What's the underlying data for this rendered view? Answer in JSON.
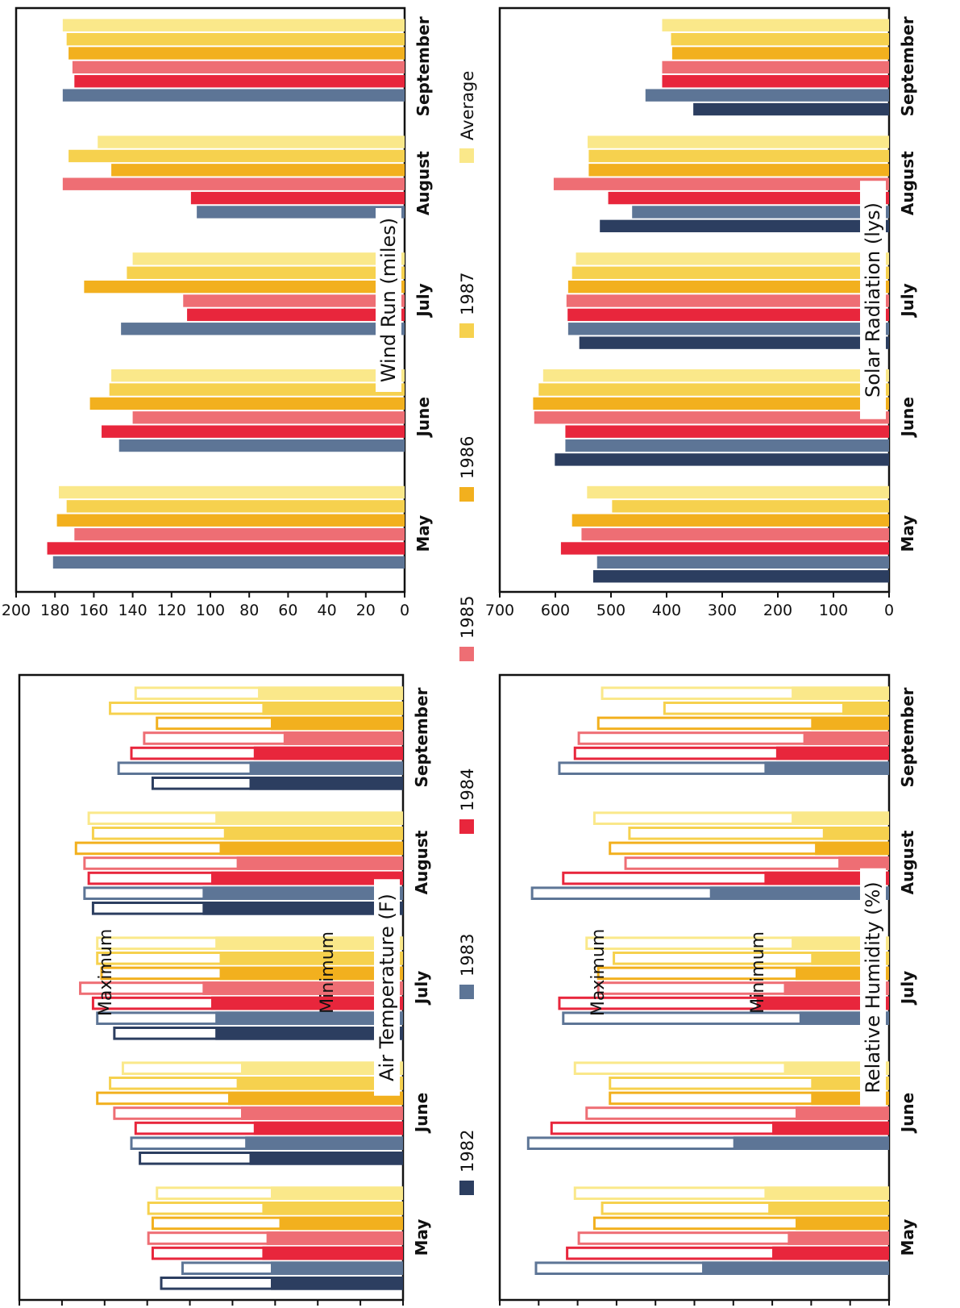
{
  "legend": {
    "items": [
      {
        "label": "1982",
        "color": "#2c3e60"
      },
      {
        "label": "1983",
        "color": "#5d7596"
      },
      {
        "label": "1984",
        "color": "#e8263c"
      },
      {
        "label": "1985",
        "color": "#ee6e74"
      },
      {
        "label": "1986",
        "color": "#f2b01e"
      },
      {
        "label": "1987",
        "color": "#f6d14e"
      },
      {
        "label": "Average",
        "color": "#fae88a"
      }
    ]
  },
  "chart_data": [
    {
      "id": "wind",
      "type": "bar",
      "title": "Wind Run (miles)",
      "categories": [
        "May",
        "June",
        "July",
        "August",
        "September"
      ],
      "ylim": [
        0,
        200
      ],
      "yticks": [
        0,
        20,
        40,
        60,
        80,
        100,
        120,
        140,
        160,
        180,
        200
      ],
      "series": [
        {
          "name": "1982",
          "values": [
            null,
            null,
            null,
            null,
            null
          ]
        },
        {
          "name": "1983",
          "values": [
            181,
            147,
            146,
            107,
            176
          ]
        },
        {
          "name": "1984",
          "values": [
            184,
            156,
            112,
            110,
            170
          ]
        },
        {
          "name": "1985",
          "values": [
            170,
            140,
            114,
            176,
            171
          ]
        },
        {
          "name": "1986",
          "values": [
            179,
            162,
            165,
            151,
            173
          ]
        },
        {
          "name": "1987",
          "values": [
            174,
            152,
            143,
            173,
            174
          ]
        },
        {
          "name": "Average",
          "values": [
            178,
            151,
            140,
            158,
            176
          ]
        }
      ]
    },
    {
      "id": "solar",
      "type": "bar",
      "title": "Solar Radiation (lys)",
      "categories": [
        "May",
        "June",
        "July",
        "August",
        "September"
      ],
      "ylim": [
        0,
        700
      ],
      "yticks": [
        0,
        100,
        200,
        300,
        400,
        500,
        600,
        700
      ],
      "series": [
        {
          "name": "1982",
          "values": [
            532,
            601,
            557,
            520,
            352
          ]
        },
        {
          "name": "1983",
          "values": [
            525,
            582,
            577,
            462,
            438
          ]
        },
        {
          "name": "1984",
          "values": [
            590,
            582,
            578,
            505,
            408
          ]
        },
        {
          "name": "1985",
          "values": [
            553,
            638,
            580,
            603,
            408
          ]
        },
        {
          "name": "1986",
          "values": [
            570,
            640,
            577,
            540,
            390
          ]
        },
        {
          "name": "1987",
          "values": [
            498,
            630,
            570,
            540,
            392
          ]
        },
        {
          "name": "Average",
          "values": [
            543,
            622,
            563,
            542,
            408
          ]
        }
      ]
    },
    {
      "id": "temp",
      "type": "bar",
      "title": "Air Temperature (F)",
      "subtype": "max-min",
      "categories": [
        "May",
        "June",
        "July",
        "August",
        "September"
      ],
      "ylim": [
        0,
        90
      ],
      "yticks": [
        0,
        10,
        20,
        30,
        40,
        50,
        60,
        70,
        80,
        90
      ],
      "annotations": [
        "Maximum",
        "Minimum"
      ],
      "series": [
        {
          "name": "1982",
          "max": [
            57,
            62,
            68,
            73,
            59
          ],
          "min": [
            31,
            36,
            44,
            47,
            36
          ]
        },
        {
          "name": "1983",
          "max": [
            52,
            64,
            72,
            75,
            67
          ],
          "min": [
            31,
            37,
            44,
            47,
            36
          ]
        },
        {
          "name": "1984",
          "max": [
            59,
            63,
            73,
            74,
            64
          ],
          "min": [
            33,
            35,
            45,
            45,
            35
          ]
        },
        {
          "name": "1985",
          "max": [
            60,
            68,
            76,
            75,
            61
          ],
          "min": [
            32,
            38,
            47,
            39,
            28
          ]
        },
        {
          "name": "1986",
          "max": [
            59,
            72,
            71,
            77,
            58
          ],
          "min": [
            29,
            41,
            43,
            43,
            31
          ]
        },
        {
          "name": "1987",
          "max": [
            60,
            69,
            72,
            73,
            69
          ],
          "min": [
            33,
            39,
            43,
            42,
            33
          ]
        },
        {
          "name": "Average",
          "max": [
            58,
            66,
            72,
            74,
            63
          ],
          "min": [
            31,
            38,
            44,
            44,
            34
          ]
        }
      ]
    },
    {
      "id": "rh",
      "type": "bar",
      "title": "Relative Humidity (%)",
      "subtype": "max-min",
      "categories": [
        "May",
        "June",
        "July",
        "August",
        "September"
      ],
      "ylim": [
        0,
        100
      ],
      "yticks": [
        0,
        10,
        20,
        30,
        40,
        50,
        60,
        70,
        80,
        90,
        100
      ],
      "annotations": [
        "Maximum",
        "Minimum"
      ],
      "series": [
        {
          "name": "1982",
          "max": [
            null,
            null,
            null,
            null,
            null
          ],
          "min": [
            null,
            null,
            null,
            null,
            null
          ]
        },
        {
          "name": "1983",
          "max": [
            91,
            93,
            84,
            92,
            85
          ],
          "min": [
            48,
            40,
            23,
            46,
            32
          ]
        },
        {
          "name": "1984",
          "max": [
            83,
            87,
            85,
            84,
            81
          ],
          "min": [
            30,
            30,
            34,
            32,
            29
          ]
        },
        {
          "name": "1985",
          "max": [
            80,
            78,
            75,
            68,
            80
          ],
          "min": [
            26,
            24,
            27,
            13,
            22
          ]
        },
        {
          "name": "1986",
          "max": [
            76,
            72,
            75,
            72,
            75
          ],
          "min": [
            24,
            20,
            24,
            19,
            20
          ]
        },
        {
          "name": "1987",
          "max": [
            74,
            72,
            71,
            67,
            58
          ],
          "min": [
            31,
            20,
            20,
            17,
            12
          ]
        },
        {
          "name": "Average",
          "max": [
            81,
            81,
            78,
            76,
            74
          ],
          "min": [
            32,
            27,
            25,
            25,
            25
          ]
        }
      ]
    }
  ]
}
